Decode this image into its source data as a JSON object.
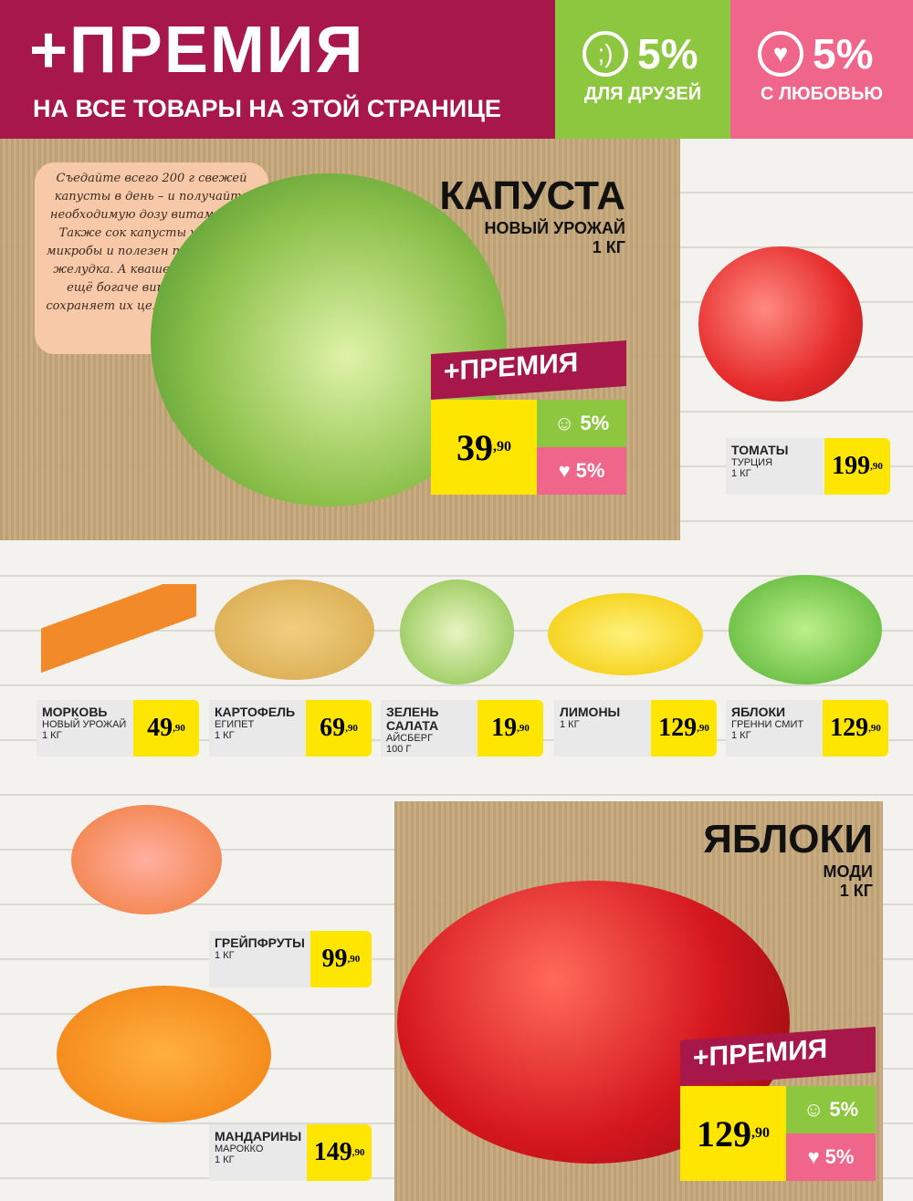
{
  "header": {
    "title": "+ПРЕМИЯ",
    "subtitle": "НА ВСЕ ТОВАРЫ НА ЭТОЙ СТРАНИЦЕ",
    "friends": {
      "percent": "5%",
      "label": "ДЛЯ ДРУЗЕЙ",
      "icon": "wink-smiley-icon",
      "color": "#8dc63f"
    },
    "love": {
      "percent": "5%",
      "label": "С ЛЮБОВЬЮ",
      "icon": "heart-eyes-smiley-icon",
      "color": "#f0668a"
    },
    "color": "#a8174a"
  },
  "note": "Съедайте всего 200 г свежей капусты в день – и получайте необходимую дозу витамина С. Также сок капусты убивает микробы и полезен при болезнях желудка. А квашеная капуста ещё богаче витаминами и сохраняет их целых 10 месяцев!",
  "featured": [
    {
      "name": "КАПУСТА",
      "sub": "НОВЫЙ УРОЖАЙ",
      "unit": "1 КГ",
      "badge": "+ПРЕМИЯ",
      "price": "39",
      "cents": "90",
      "friends": "5%",
      "love": "5%"
    },
    {
      "name": "ЯБЛОКИ",
      "sub": "МОДИ",
      "unit": "1 КГ",
      "badge": "+ПРЕМИЯ",
      "price": "129",
      "cents": "90",
      "friends": "5%",
      "love": "5%"
    }
  ],
  "products": [
    {
      "name": "ТОМАТЫ",
      "l1": "ТУРЦИЯ",
      "l2": "1 КГ",
      "price": "199",
      "cents": "90"
    },
    {
      "name": "МОРКОВЬ",
      "l1": "НОВЫЙ УРОЖАЙ",
      "l2": "1 КГ",
      "price": "49",
      "cents": "90"
    },
    {
      "name": "КАРТОФЕЛЬ",
      "l1": "ЕГИПЕТ",
      "l2": "1 КГ",
      "price": "69",
      "cents": "90"
    },
    {
      "name": "ЗЕЛЕНЬ САЛАТА",
      "l1": "АЙСБЕРГ",
      "l2": "100 Г",
      "price": "19",
      "cents": "90"
    },
    {
      "name": "ЛИМОНЫ",
      "l1": "1 КГ",
      "l2": "",
      "price": "129",
      "cents": "90"
    },
    {
      "name": "ЯБЛОКИ",
      "l1": "ГРЕННИ СМИТ",
      "l2": "1 КГ",
      "price": "129",
      "cents": "90"
    },
    {
      "name": "ГРЕЙПФРУТЫ",
      "l1": "1 КГ",
      "l2": "",
      "price": "99",
      "cents": "90"
    },
    {
      "name": "МАНДАРИНЫ",
      "l1": "МАРОККО",
      "l2": "1 КГ",
      "price": "149",
      "cents": "90"
    }
  ]
}
